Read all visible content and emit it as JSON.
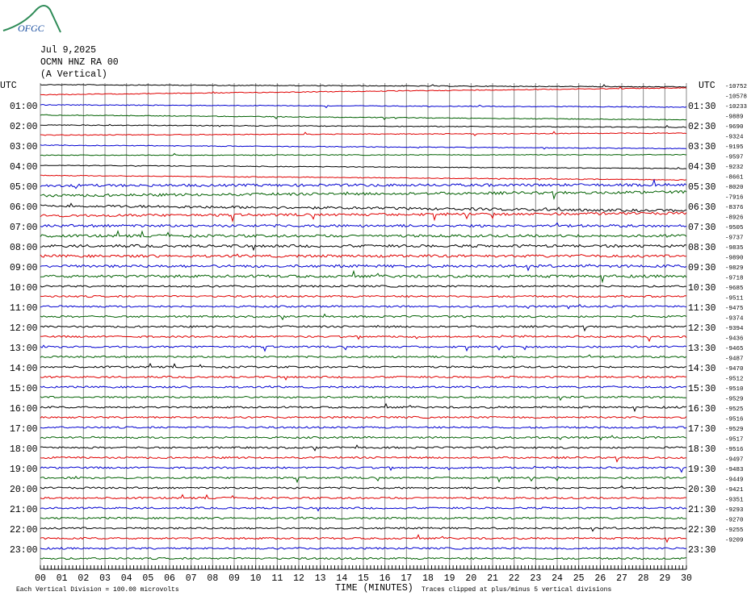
{
  "header": {
    "logo": "OFGC",
    "date": "Jul 9,2025",
    "station": "OCMN HNZ RA 00",
    "component": "(A Vertical)"
  },
  "left_axis": {
    "title": "UTC",
    "labels": [
      "01:00",
      "02:00",
      "03:00",
      "04:00",
      "05:00",
      "06:00",
      "07:00",
      "08:00",
      "09:00",
      "10:00",
      "11:00",
      "12:00",
      "13:00",
      "14:00",
      "15:00",
      "16:00",
      "17:00",
      "18:00",
      "19:00",
      "20:00",
      "21:00",
      "22:00",
      "23:00"
    ]
  },
  "right_axis": {
    "title": "UTC",
    "labels": [
      "01:30",
      "02:30",
      "03:30",
      "04:30",
      "05:30",
      "06:30",
      "07:30",
      "08:30",
      "09:30",
      "10:30",
      "11:30",
      "12:30",
      "13:30",
      "14:30",
      "15:30",
      "16:30",
      "17:30",
      "18:30",
      "19:30",
      "20:30",
      "21:30",
      "22:30",
      "23:30"
    ]
  },
  "trace_offsets": [
    -10752,
    -10578,
    -10233,
    -9889,
    -9690,
    -9324,
    -9195,
    -9597,
    -9232,
    -8661,
    -8020,
    -7916,
    -8376,
    -8926,
    -9505,
    -9737,
    -9835,
    -9890,
    -9829,
    -9718,
    -9685,
    -9511,
    -9475,
    -9374,
    -9394,
    -9436,
    -9465,
    -9487,
    -9470,
    -9512,
    -9510,
    -9529,
    -9525,
    -9516,
    -9529,
    -9517,
    -9516,
    -9497,
    -9483,
    -9449,
    -9421,
    -9351,
    -9293,
    -9270,
    -9255,
    -9209
  ],
  "x_axis": {
    "title": "TIME (MINUTES)",
    "ticks": [
      "00",
      "01",
      "02",
      "03",
      "04",
      "05",
      "06",
      "07",
      "08",
      "09",
      "10",
      "11",
      "12",
      "13",
      "14",
      "15",
      "16",
      "17",
      "18",
      "19",
      "20",
      "21",
      "22",
      "23",
      "24",
      "25",
      "26",
      "27",
      "28",
      "29",
      "30"
    ]
  },
  "trace_colors": [
    "#000000",
    "#e00000",
    "#0000d0",
    "#006000"
  ],
  "footer": {
    "scale_note": "Each Vertical Division =  100.00 microvolts",
    "clip_note": "Traces clipped at plus/minus 5 vertical divisions"
  }
}
